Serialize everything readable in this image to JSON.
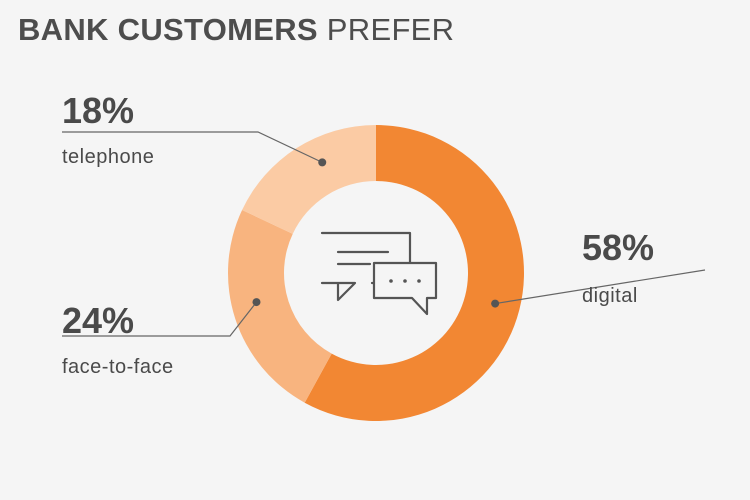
{
  "title": {
    "bold": "BANK CUSTOMERS",
    "light": "PREFER"
  },
  "center_icon": "chat-bubbles-icon",
  "colors": {
    "background": "#f5f5f5",
    "text": "#4a4a4a",
    "leader": "#666666",
    "digital": "#f28733",
    "face_to_face": "#f8b47f",
    "telephone": "#fbcba4"
  },
  "chart_data": {
    "type": "pie",
    "donut": true,
    "slices": [
      {
        "label": "digital",
        "value": 58,
        "value_label": "58%",
        "color": "#f28733"
      },
      {
        "label": "face-to-face",
        "value": 24,
        "value_label": "24%",
        "color": "#f8b47f"
      },
      {
        "label": "telephone",
        "value": 18,
        "value_label": "18%",
        "color": "#fbcba4"
      }
    ]
  }
}
